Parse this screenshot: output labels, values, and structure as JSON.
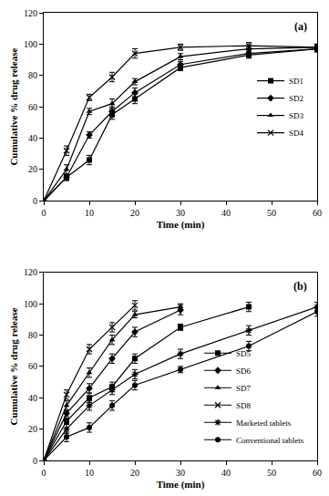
{
  "chart_data": [
    {
      "type": "line",
      "annotations": [
        "(a)"
      ],
      "x_label": "Time (min)",
      "y_label": "Cumulative % drug release",
      "xlim": [
        0,
        60
      ],
      "xticks": [
        0,
        10,
        20,
        30,
        40,
        50,
        60
      ],
      "ylim": [
        0,
        120
      ],
      "yticks": [
        0,
        20,
        40,
        60,
        80,
        100,
        120
      ],
      "grid": false,
      "legend": "center right",
      "series": [
        {
          "name": "SD1",
          "color": "#000000",
          "marker": "square",
          "line_style": "solid",
          "x": [
            0,
            5,
            10,
            15,
            20,
            30,
            45,
            60
          ],
          "values": [
            0,
            15,
            26,
            55,
            65,
            85,
            93,
            97
          ],
          "error": [
            0,
            2,
            3,
            3,
            3,
            2,
            2,
            2
          ]
        },
        {
          "name": "SD2",
          "color": "#000000",
          "marker": "diamond",
          "line_style": "solid",
          "x": [
            0,
            5,
            10,
            15,
            20,
            30,
            45,
            60
          ],
          "values": [
            0,
            15,
            42,
            57,
            69,
            87,
            94,
            97
          ],
          "error": [
            0,
            2,
            2,
            3,
            3,
            2,
            2,
            2
          ]
        },
        {
          "name": "SD3",
          "color": "#000000",
          "marker": "triangle",
          "line_style": "solid",
          "x": [
            0,
            5,
            10,
            15,
            20,
            30,
            45,
            60
          ],
          "values": [
            0,
            20,
            57,
            62,
            76,
            92,
            97,
            98
          ],
          "error": [
            0,
            3,
            2,
            3,
            2,
            2,
            2,
            2
          ]
        },
        {
          "name": "SD4",
          "color": "#000000",
          "marker": "x",
          "line_style": "solid",
          "x": [
            0,
            5,
            10,
            15,
            20,
            30,
            45,
            60
          ],
          "values": [
            0,
            32,
            66,
            79,
            94,
            98,
            99,
            98
          ],
          "error": [
            0,
            3,
            2,
            3,
            3,
            2,
            2,
            2
          ]
        }
      ]
    },
    {
      "type": "line",
      "annotations": [
        "(b)"
      ],
      "x_label": "Time (min)",
      "y_label": "Cumulative % drug release",
      "xlim": [
        0,
        60
      ],
      "xticks": [
        0,
        10,
        20,
        30,
        40,
        50,
        60
      ],
      "ylim": [
        0,
        120
      ],
      "yticks": [
        0,
        20,
        40,
        60,
        80,
        100,
        120
      ],
      "grid": false,
      "legend": "bottom right",
      "series": [
        {
          "name": "SD5",
          "color": "#000000",
          "marker": "square",
          "line_style": "solid",
          "x": [
            0,
            5,
            10,
            15,
            20,
            30,
            45
          ],
          "values": [
            0,
            25,
            40,
            47,
            65,
            85,
            98
          ],
          "error": [
            0,
            2,
            3,
            3,
            3,
            2,
            3
          ]
        },
        {
          "name": "SD6",
          "color": "#000000",
          "marker": "diamond",
          "line_style": "solid",
          "x": [
            0,
            5,
            10,
            15,
            20,
            30
          ],
          "values": [
            0,
            30,
            46,
            65,
            82,
            96
          ],
          "error": [
            0,
            2,
            3,
            3,
            3,
            3
          ]
        },
        {
          "name": "SD7",
          "color": "#000000",
          "marker": "triangle",
          "line_style": "solid",
          "x": [
            0,
            5,
            10,
            15,
            20,
            30
          ],
          "values": [
            0,
            35,
            56,
            77,
            93,
            98
          ],
          "error": [
            0,
            3,
            3,
            3,
            2,
            2
          ]
        },
        {
          "name": "SD8",
          "color": "#000000",
          "marker": "x",
          "line_style": "solid",
          "x": [
            0,
            5,
            10,
            15,
            20
          ],
          "values": [
            0,
            42,
            71,
            85,
            99
          ],
          "error": [
            0,
            3,
            3,
            3,
            3
          ]
        },
        {
          "name": "Marketed tablets",
          "color": "#000000",
          "marker": "asterisk",
          "line_style": "solid",
          "x": [
            0,
            5,
            10,
            15,
            20,
            30,
            45,
            60
          ],
          "values": [
            0,
            20,
            35,
            45,
            55,
            68,
            83,
            98
          ],
          "error": [
            0,
            3,
            3,
            3,
            3,
            3,
            3,
            3
          ]
        },
        {
          "name": "Conventional tablets",
          "color": "#000000",
          "marker": "circle",
          "line_style": "solid",
          "x": [
            0,
            5,
            10,
            15,
            20,
            30,
            45,
            60
          ],
          "values": [
            0,
            15,
            21,
            35,
            48,
            58,
            73,
            95
          ],
          "error": [
            0,
            3,
            3,
            3,
            3,
            2,
            3,
            3
          ]
        }
      ]
    }
  ]
}
